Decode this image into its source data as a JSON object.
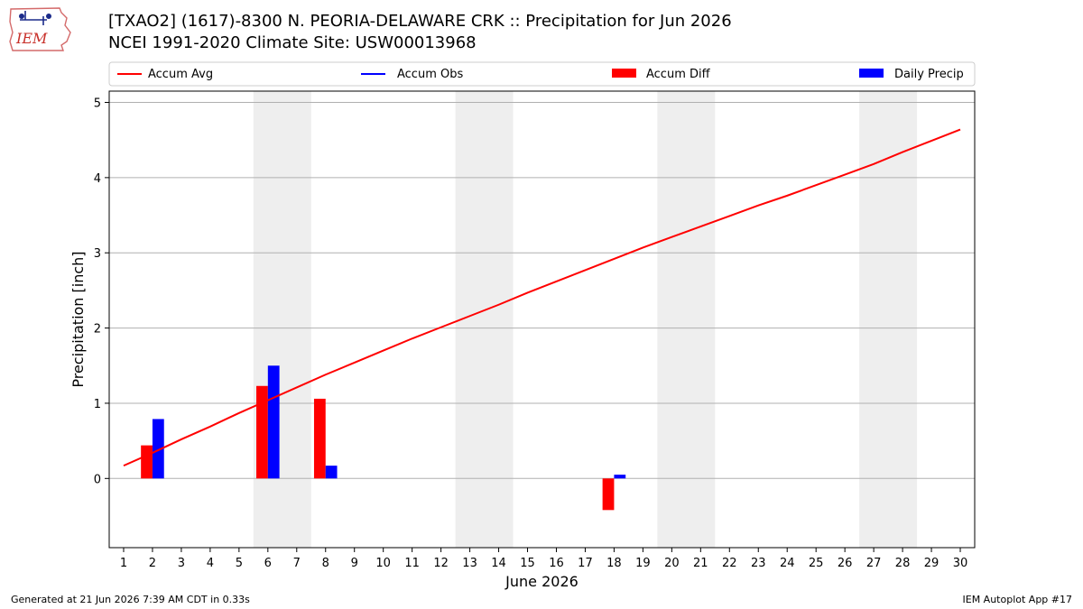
{
  "header": {
    "logo_text": "IEM",
    "title_line1": "[TXAO2] (1617)-8300 N. PEORIA-DELAWARE CRK :: Precipitation for Jun 2026",
    "title_line2": "NCEI 1991-2020 Climate Site: USW00013968"
  },
  "footer": {
    "left": "Generated at 21 Jun 2026 7:39 AM CDT in 0.33s",
    "right": "IEM Autoplot App #17"
  },
  "colors": {
    "accum_avg": "#ff0000",
    "accum_obs": "#0000ff",
    "accum_diff": "#ff0000",
    "daily_precip": "#0000ff",
    "weekend_shade": "#eeeeee",
    "grid": "#b0b0b0"
  },
  "chart_data": {
    "type": "bar",
    "xlabel": "June 2026",
    "ylabel": "Precipitation [inch]",
    "xlim": [
      0.5,
      30.5
    ],
    "ylim": [
      -0.92,
      5.15
    ],
    "x_ticks": [
      1,
      2,
      3,
      4,
      5,
      6,
      7,
      8,
      9,
      10,
      11,
      12,
      13,
      14,
      15,
      16,
      17,
      18,
      19,
      20,
      21,
      22,
      23,
      24,
      25,
      26,
      27,
      28,
      29,
      30
    ],
    "y_ticks": [
      0,
      1,
      2,
      3,
      4,
      5
    ],
    "grid": "horizontal",
    "legend": {
      "placement": "top",
      "entries": [
        {
          "label": "Accum Avg",
          "kind": "line",
          "color": "#ff0000"
        },
        {
          "label": "Accum Obs",
          "kind": "line",
          "color": "#0000ff"
        },
        {
          "label": "Accum Diff",
          "kind": "bar",
          "color": "#ff0000"
        },
        {
          "label": "Daily Precip",
          "kind": "bar",
          "color": "#0000ff"
        }
      ]
    },
    "weekend_shading": [
      [
        5.5,
        7.5
      ],
      [
        12.5,
        14.5
      ],
      [
        19.5,
        21.5
      ],
      [
        26.5,
        28.5
      ]
    ],
    "series": [
      {
        "name": "Accum Avg",
        "type": "line",
        "x": [
          1,
          2,
          3,
          4,
          5,
          6,
          7,
          8,
          9,
          10,
          11,
          12,
          13,
          14,
          15,
          16,
          17,
          18,
          19,
          20,
          21,
          22,
          23,
          24,
          25,
          26,
          27,
          28,
          29,
          30
        ],
        "values": [
          0.17,
          0.34,
          0.52,
          0.69,
          0.87,
          1.04,
          1.21,
          1.38,
          1.54,
          1.7,
          1.86,
          2.01,
          2.16,
          2.31,
          2.47,
          2.62,
          2.77,
          2.92,
          3.07,
          3.21,
          3.35,
          3.49,
          3.63,
          3.76,
          3.9,
          4.04,
          4.18,
          4.34,
          4.49,
          4.64
        ]
      },
      {
        "name": "Accum Diff",
        "type": "bar",
        "x": [
          2,
          6,
          8,
          18
        ],
        "values": [
          0.44,
          1.23,
          1.06,
          -0.42
        ]
      },
      {
        "name": "Daily Precip",
        "type": "bar",
        "x": [
          2,
          6,
          8,
          18
        ],
        "values": [
          0.79,
          1.5,
          0.17,
          0.05
        ]
      }
    ]
  }
}
